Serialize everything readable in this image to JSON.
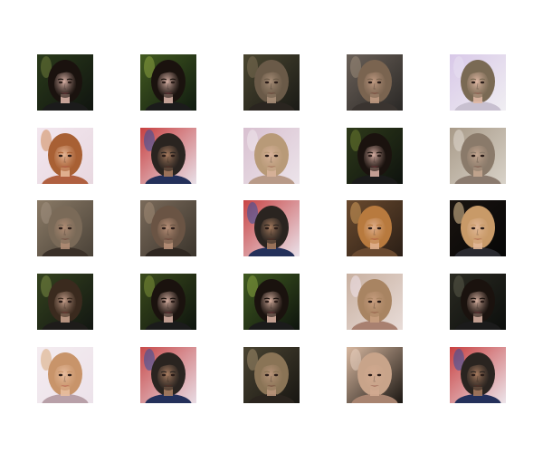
{
  "grid": {
    "rows": 5,
    "columns": 5,
    "tiles": [
      {
        "bg": "#101410",
        "bg2": "#2a3a1a",
        "hair": "#1a120e",
        "skin": "#d9b2a6",
        "mouth": "#7a2a36",
        "highlight": "#6d7a3a",
        "cloth": "#1b1b1b"
      },
      {
        "bg": "#101a10",
        "bg2": "#425a20",
        "hair": "#1a120e",
        "skin": "#d6b0a4",
        "mouth": "#7a2a36",
        "highlight": "#8aa040",
        "cloth": "#1b1b1b"
      },
      {
        "bg": "#1a1a16",
        "bg2": "#4a4630",
        "hair": "#6a5a48",
        "skin": "#a88e78",
        "mouth": "#6a3a2e",
        "highlight": "#7c6e54",
        "cloth": "#2a2520"
      },
      {
        "bg": "#2a2826",
        "bg2": "#6a6058",
        "hair": "#7a6450",
        "skin": "#c09a82",
        "mouth": "#7a3a32",
        "highlight": "#9a8a78",
        "cloth": "#3a3430"
      },
      {
        "bg": "#f0eef2",
        "bg2": "#d8c8e8",
        "hair": "#7a6a54",
        "skin": "#e0b8a4",
        "mouth": "#9a5048",
        "highlight": "#e8e0f0",
        "cloth": "#c8c0d0"
      },
      {
        "bg": "#e8d8e0",
        "bg2": "#f2e6ee",
        "hair": "#a86034",
        "skin": "#e6b898",
        "mouth": "#b04a44",
        "highlight": "#d08a58",
        "cloth": "#b06040"
      },
      {
        "bg": "#e8e0e8",
        "bg2": "#c84040",
        "hair": "#2a2420",
        "skin": "#a67a5e",
        "mouth": "#5a2a22",
        "highlight": "#3050a0",
        "cloth": "#24305a"
      },
      {
        "bg": "#ece4ea",
        "bg2": "#d8c0d0",
        "hair": "#b89a78",
        "skin": "#d8b29a",
        "mouth": "#9a5a4a",
        "highlight": "#f0e8ec",
        "cloth": "#b89a88"
      },
      {
        "bg": "#0e120e",
        "bg2": "#2e3a1a",
        "hair": "#1a120e",
        "skin": "#d6aea2",
        "mouth": "#7a2a36",
        "highlight": "#6a7a30",
        "cloth": "#1b1b1b"
      },
      {
        "bg": "#d8d2c8",
        "bg2": "#a89a88",
        "hair": "#8a7a6a",
        "skin": "#c4a690",
        "mouth": "#7a4a3e",
        "highlight": "#e0d8d0",
        "cloth": "#8a7a6e"
      },
      {
        "bg": "#4a4238",
        "bg2": "#8a7a66",
        "hair": "#7a6a58",
        "skin": "#b08c74",
        "mouth": "#6a3a30",
        "highlight": "#a09080",
        "cloth": "#3a3028"
      },
      {
        "bg": "#3a342c",
        "bg2": "#7a6a5a",
        "hair": "#6a5444",
        "skin": "#b89078",
        "mouth": "#6a3630",
        "highlight": "#a08a74",
        "cloth": "#2e2620"
      },
      {
        "bg": "#eae2ea",
        "bg2": "#c84444",
        "hair": "#2a2420",
        "skin": "#a47a5e",
        "mouth": "#5a2a22",
        "highlight": "#3050a0",
        "cloth": "#24305a"
      },
      {
        "bg": "#2a1e16",
        "bg2": "#6a4a2e",
        "hair": "#b87a3e",
        "skin": "#e0b08e",
        "mouth": "#a8443c",
        "highlight": "#d09a5a",
        "cloth": "#6a4a30"
      },
      {
        "bg": "#060606",
        "bg2": "#1a1410",
        "hair": "#c89a68",
        "skin": "#e2b898",
        "mouth": "#a04a40",
        "highlight": "#e8c89a",
        "cloth": "#2a2a30"
      },
      {
        "bg": "#121612",
        "bg2": "#34421e",
        "hair": "#3a2a1e",
        "skin": "#c49e8a",
        "mouth": "#7a3030",
        "highlight": "#7a8a44",
        "cloth": "#1e1c1a"
      },
      {
        "bg": "#0e140e",
        "bg2": "#3a4a1c",
        "hair": "#1a120e",
        "skin": "#d2ac9e",
        "mouth": "#7a2a36",
        "highlight": "#7c9038",
        "cloth": "#1b1b1b"
      },
      {
        "bg": "#0e140e",
        "bg2": "#405a20",
        "hair": "#1a120e",
        "skin": "#d4ae9e",
        "mouth": "#7a2a36",
        "highlight": "#86a040",
        "cloth": "#1b1b1b"
      },
      {
        "bg": "#e8dcd8",
        "bg2": "#c8b0a0",
        "hair": "#a88462",
        "skin": "#c89e80",
        "mouth": "#8a4a3a",
        "highlight": "#f0e4ec",
        "cloth": "#a88070"
      },
      {
        "bg": "#0c0e0c",
        "bg2": "#2a2a22",
        "hair": "#1a120e",
        "skin": "#d4ae9e",
        "mouth": "#7a2a36",
        "highlight": "#5a5a48",
        "cloth": "#1b1b1b"
      },
      {
        "bg": "#ece2ea",
        "bg2": "#f4ecf0",
        "hair": "#c8946a",
        "skin": "#e8bea0",
        "mouth": "#b04a44",
        "highlight": "#d8a878",
        "cloth": "#b8a0a8"
      },
      {
        "bg": "#e8dce4",
        "bg2": "#c84a4a",
        "hair": "#2a2420",
        "skin": "#aa7e62",
        "mouth": "#5a2a22",
        "highlight": "#3050a0",
        "cloth": "#24305a"
      },
      {
        "bg": "#181612",
        "bg2": "#4a4432",
        "hair": "#8a7456",
        "skin": "#b8947a",
        "mouth": "#6a3a30",
        "highlight": "#a08c6c",
        "cloth": "#2a241e"
      },
      {
        "bg": "#1a1612",
        "bg2": "#d8b8a0",
        "hair": "#c8a48a",
        "skin": "#d2aa90",
        "mouth": "#8a4a3e",
        "highlight": "#e8d0c0",
        "cloth": "#a88470"
      },
      {
        "bg": "#ece4ea",
        "bg2": "#c84040",
        "hair": "#2a2420",
        "skin": "#a67a5e",
        "mouth": "#5a2a22",
        "highlight": "#3050a0",
        "cloth": "#24305a"
      }
    ]
  }
}
